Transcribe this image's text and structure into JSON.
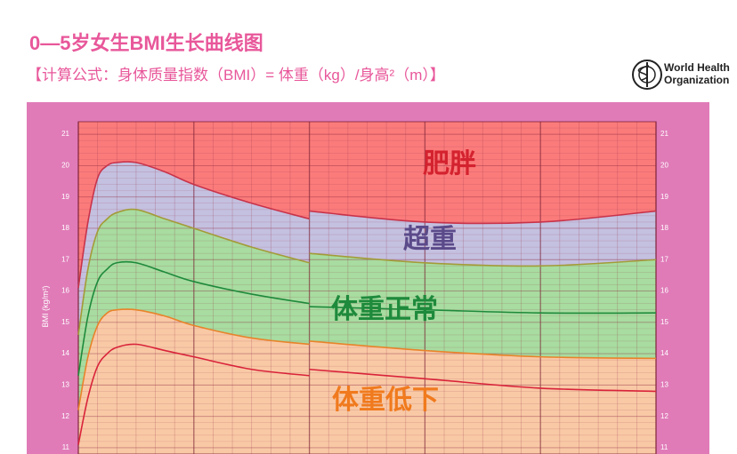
{
  "header": {
    "title": "0—5岁女生BMI生长曲线图",
    "subtitle": "【计算公式：身体质量指数（BMI）= 体重（kg）/身高²（m）】",
    "logo_line1": "World Health",
    "logo_line2": "Organization"
  },
  "chart_data": {
    "type": "area-bands",
    "y_label": "BMI (kg/m²)",
    "x": [
      0,
      1,
      2,
      3,
      4,
      6,
      9,
      12,
      18,
      24,
      24,
      24,
      36,
      48,
      60
    ],
    "xlim": [
      0,
      60
    ],
    "ylim": [
      10.8,
      21.4
    ],
    "yticks": [
      11,
      12,
      13,
      14,
      15,
      16,
      17,
      18,
      19,
      20,
      21
    ],
    "series": [
      {
        "color": "#d9233a",
        "fill": "#f9c9a6",
        "values": [
          11.1,
          12.6,
          13.6,
          14.0,
          14.2,
          14.3,
          14.1,
          13.9,
          13.5,
          13.3,
          null,
          13.5,
          13.2,
          12.9,
          12.8
        ]
      },
      {
        "color": "#e8832a",
        "fill": "#f9c9a6",
        "values": [
          12.2,
          13.9,
          14.9,
          15.3,
          15.4,
          15.4,
          15.2,
          14.9,
          14.5,
          14.3,
          null,
          14.4,
          14.1,
          13.9,
          13.85
        ]
      },
      {
        "color": "#1e8a3b",
        "fill": "#a8dca0",
        "values": [
          13.3,
          15.2,
          16.3,
          16.7,
          16.9,
          16.9,
          16.6,
          16.3,
          15.9,
          15.6,
          null,
          15.5,
          15.4,
          15.3,
          15.3
        ]
      },
      {
        "color": "#a39b38",
        "fill": "#a8dca0",
        "values": [
          14.6,
          16.7,
          17.9,
          18.3,
          18.5,
          18.6,
          18.3,
          18.0,
          17.4,
          16.9,
          null,
          17.2,
          16.9,
          16.8,
          17.0
        ]
      },
      {
        "color": "#c8334a",
        "fill": "#c4c0e0",
        "values": [
          16.1,
          18.2,
          19.6,
          20.0,
          20.1,
          20.1,
          19.8,
          19.4,
          18.8,
          18.3,
          null,
          18.55,
          18.2,
          18.2,
          18.55
        ]
      }
    ],
    "fill_above": "#fb7b7b",
    "grid": true,
    "annotations": [
      {
        "text": "肥胖",
        "color": "#d4222f"
      },
      {
        "text": "超重",
        "color": "#5b4a8a"
      },
      {
        "text": "体重正常",
        "color": "#1e8a3b"
      },
      {
        "text": "体重低下",
        "color": "#f07a1d"
      }
    ]
  }
}
